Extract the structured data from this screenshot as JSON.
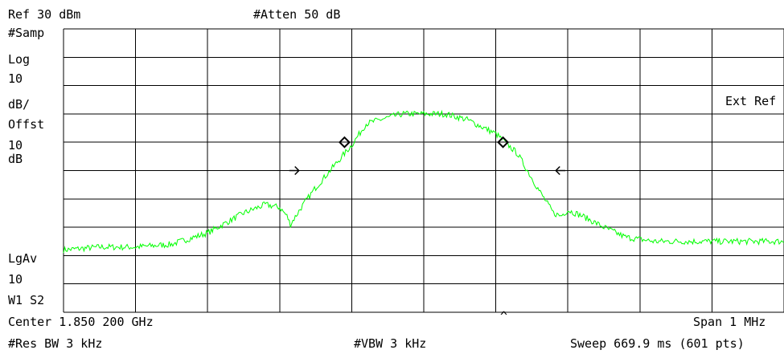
{
  "header": {
    "ref_level": "Ref 30 dBm",
    "attenuation": "#Atten 50 dB"
  },
  "left_annotations": {
    "detector": "#Samp",
    "scale_type": "Log",
    "scale_value": "10",
    "scale_unit": "dB/",
    "offset_label": "Offst",
    "offset_value": "10",
    "offset_unit": "dB",
    "avg_label": "LgAv",
    "avg_count": "10",
    "trace_info": "W1  S2"
  },
  "right_annotation": "Ext Ref",
  "center_marker": "^",
  "footer": {
    "center": "Center 1.850 200 GHz",
    "span": "Span 1 MHz",
    "rbw": "#Res BW 3 kHz",
    "vbw": "#VBW 3 kHz",
    "sweep": "Sweep 669.9 ms (601 pts)"
  },
  "colors": {
    "trace": "#00ff00",
    "grid": "#000000",
    "background": "#ffffff"
  },
  "chart_data": {
    "type": "line",
    "x_unit": "divisions",
    "y_unit": "dBm",
    "xlim": [
      0,
      10
    ],
    "ylim": [
      -70,
      30
    ],
    "x_divisions": 10,
    "y_divisions": 10,
    "series": [
      {
        "values_x": [
          0.0,
          0.5,
          1.0,
          1.5,
          2.0,
          2.5,
          2.8,
          3.0,
          3.1,
          3.15,
          3.3,
          3.5,
          3.8,
          4.0,
          4.2,
          4.4,
          4.7,
          5.0,
          5.3,
          5.6,
          6.0,
          6.3,
          6.6,
          6.8,
          6.9,
          7.0,
          7.2,
          7.5,
          7.8,
          8.2,
          8.6,
          9.0,
          9.5,
          10.0
        ],
        "values_y": [
          -48,
          -47,
          -47,
          -46,
          -42,
          -35,
          -32,
          -33,
          -36,
          -39,
          -33,
          -26,
          -17,
          -11,
          -3.5,
          -2,
          0,
          0,
          0,
          -2,
          -7,
          -14,
          -27,
          -35,
          -36,
          -34,
          -36,
          -40,
          -43.5,
          -45,
          -45,
          -45,
          -45,
          -45
        ]
      }
    ],
    "markers": [
      {
        "type": "diamond",
        "x": 3.9,
        "y": -10
      },
      {
        "type": "diamond",
        "x": 6.1,
        "y": -10
      },
      {
        "type": "arrow-right",
        "x": 3.2,
        "y": -20
      },
      {
        "type": "arrow-left",
        "x": 6.9,
        "y": -20
      }
    ]
  }
}
